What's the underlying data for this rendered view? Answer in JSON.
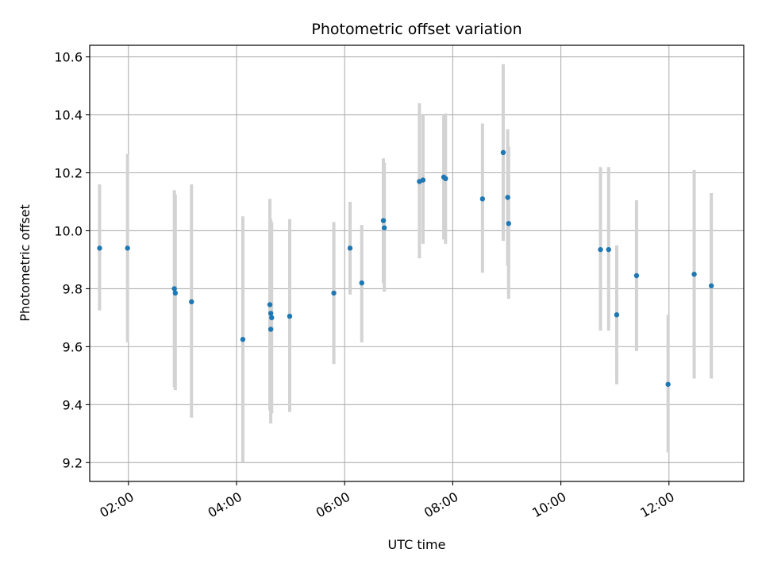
{
  "chart_data": {
    "type": "scatter",
    "title": "Photometric offset variation",
    "xlabel": "UTC time",
    "ylabel": "Photometric offset",
    "xlim": [
      "01:17",
      "13:23"
    ],
    "ylim": [
      9.135,
      10.64
    ],
    "grid": true,
    "x_ticks": [
      "02:00",
      "04:00",
      "06:00",
      "08:00",
      "10:00",
      "12:00"
    ],
    "y_ticks": [
      "9.2",
      "9.4",
      "9.6",
      "9.8",
      "10.0",
      "10.2",
      "10.4",
      "10.6"
    ],
    "series": [
      {
        "marker_color": "#1f77b4",
        "errorbar_color": "#d3d3d3",
        "points": [
          {
            "x": "01:28",
            "y": 9.94,
            "err_low": 9.725,
            "err_high": 10.16
          },
          {
            "x": "01:59",
            "y": 9.94,
            "err_low": 9.615,
            "err_high": 10.265
          },
          {
            "x": "02:51",
            "y": 9.8,
            "err_low": 9.46,
            "err_high": 10.14
          },
          {
            "x": "02:52",
            "y": 9.785,
            "err_low": 9.45,
            "err_high": 10.125
          },
          {
            "x": "03:10",
            "y": 9.755,
            "err_low": 9.355,
            "err_high": 10.16
          },
          {
            "x": "04:07",
            "y": 9.625,
            "err_low": 9.2,
            "err_high": 10.05
          },
          {
            "x": "04:37",
            "y": 9.745,
            "err_low": 9.38,
            "err_high": 10.11
          },
          {
            "x": "04:38",
            "y": 9.715,
            "err_low": 9.39,
            "err_high": 10.04
          },
          {
            "x": "04:38",
            "y": 9.66,
            "err_low": 9.335,
            "err_high": 10.0
          },
          {
            "x": "04:39",
            "y": 9.7,
            "err_low": 9.37,
            "err_high": 10.03
          },
          {
            "x": "04:59",
            "y": 9.705,
            "err_low": 9.375,
            "err_high": 10.04
          },
          {
            "x": "05:48",
            "y": 9.785,
            "err_low": 9.54,
            "err_high": 10.03
          },
          {
            "x": "06:06",
            "y": 9.94,
            "err_low": 9.78,
            "err_high": 10.1
          },
          {
            "x": "06:19",
            "y": 9.82,
            "err_low": 9.615,
            "err_high": 10.02
          },
          {
            "x": "06:43",
            "y": 10.035,
            "err_low": 9.82,
            "err_high": 10.25
          },
          {
            "x": "06:44",
            "y": 10.01,
            "err_low": 9.79,
            "err_high": 10.235
          },
          {
            "x": "07:23",
            "y": 10.17,
            "err_low": 9.905,
            "err_high": 10.44
          },
          {
            "x": "07:27",
            "y": 10.175,
            "err_low": 9.955,
            "err_high": 10.4
          },
          {
            "x": "07:50",
            "y": 10.185,
            "err_low": 9.97,
            "err_high": 10.4
          },
          {
            "x": "07:52",
            "y": 10.18,
            "err_low": 9.955,
            "err_high": 10.405
          },
          {
            "x": "08:33",
            "y": 10.11,
            "err_low": 9.855,
            "err_high": 10.37
          },
          {
            "x": "08:56",
            "y": 10.27,
            "err_low": 9.965,
            "err_high": 10.575
          },
          {
            "x": "09:01",
            "y": 10.115,
            "err_low": 9.88,
            "err_high": 10.35
          },
          {
            "x": "09:02",
            "y": 10.025,
            "err_low": 9.765,
            "err_high": 10.29
          },
          {
            "x": "10:44",
            "y": 9.935,
            "err_low": 9.655,
            "err_high": 10.22
          },
          {
            "x": "10:53",
            "y": 9.935,
            "err_low": 9.655,
            "err_high": 10.22
          },
          {
            "x": "11:02",
            "y": 9.71,
            "err_low": 9.47,
            "err_high": 9.95
          },
          {
            "x": "11:24",
            "y": 9.845,
            "err_low": 9.585,
            "err_high": 10.105
          },
          {
            "x": "11:59",
            "y": 9.47,
            "err_low": 9.235,
            "err_high": 9.71
          },
          {
            "x": "12:28",
            "y": 9.85,
            "err_low": 9.49,
            "err_high": 10.21
          },
          {
            "x": "12:47",
            "y": 9.81,
            "err_low": 9.49,
            "err_high": 10.13
          }
        ]
      }
    ]
  }
}
